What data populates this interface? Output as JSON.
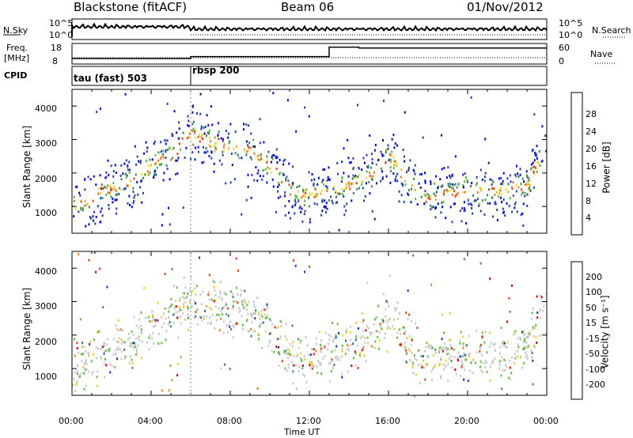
{
  "header": {
    "station": "Blackstone (fitACF)",
    "beam": "Beam 06",
    "date": "01/Nov/2012"
  },
  "param_panel": {
    "nsky_label": "N.Sky",
    "nsky_ticks": [
      "10^5",
      "10^0"
    ],
    "nsearch_label": "N.Search",
    "nsearch_ticks": [
      "10^5",
      "10^0"
    ],
    "freq_label_top": "Freq.",
    "freq_label_bottom": "[MHz]",
    "freq_ticks": [
      "18",
      "8"
    ],
    "nave_label": "Nave",
    "nave_ticks": [
      "60",
      "0"
    ],
    "cpid_label": "CPID",
    "cpid_modes": [
      {
        "name": "tau (fast) 503",
        "start_hour": 0
      },
      {
        "name": "rbsp 200",
        "start_hour": 6
      }
    ]
  },
  "axes": {
    "time_label": "Time UT",
    "time_ticks": [
      "00:00",
      "04:00",
      "08:00",
      "12:00",
      "16:00",
      "20:00",
      "00:00"
    ],
    "range_label": "Slant Range [km]",
    "range_ticks": [
      "1000",
      "2000",
      "3000",
      "4000"
    ],
    "xlim_hours": [
      0,
      24
    ],
    "ylim_km": [
      200,
      4500
    ]
  },
  "colorbars": {
    "power": {
      "label": "Power [dB]",
      "ticks": [
        "28",
        "24",
        "20",
        "16",
        "12",
        "8",
        "4"
      ],
      "colors": [
        "#0000f0",
        "#1f3fc0",
        "#2a5d9a",
        "#2f7a6a",
        "#3c8f4e",
        "#5fb33a",
        "#a6d42a",
        "#f0e020",
        "#f0b018",
        "#f07818",
        "#f04010",
        "#e00000"
      ]
    },
    "velocity": {
      "label": "Velocity [m s⁻¹]",
      "ticks": [
        "200",
        "100",
        "50",
        "15",
        "-15",
        "-50",
        "-100",
        "-200"
      ],
      "colors": [
        "#1832d8",
        "#2f70a0",
        "#3c8f5c",
        "#5fc23c",
        "#c8c8c8",
        "#f0d020",
        "#f08018",
        "#f04010",
        "#e00000"
      ]
    }
  },
  "chart_data": {
    "type": "heatmap",
    "title": "Blackstone (fitACF) Beam 06 01/Nov/2012",
    "xlabel": "Time UT",
    "ylabel": "Slant Range [km]",
    "xlim": [
      0,
      24
    ],
    "ylim": [
      200,
      4500
    ],
    "colorbar_power_label": "Power [dB]",
    "colorbar_velocity_label": "Velocity [m s⁻¹]",
    "frequency_mhz": [
      {
        "from_hour": 0,
        "to_hour": 6,
        "value": 10.5
      },
      {
        "from_hour": 6,
        "to_hour": 13,
        "value": 11.5
      },
      {
        "from_hour": 13,
        "to_hour": 14.5,
        "value": 16.5
      },
      {
        "from_hour": 14.5,
        "to_hour": 24,
        "value": 16.0
      }
    ],
    "echo_band_center_km": [
      {
        "hour": 0.0,
        "km": 1050
      },
      {
        "hour": 1.0,
        "km": 1300
      },
      {
        "hour": 2.0,
        "km": 1600
      },
      {
        "hour": 3.0,
        "km": 1800
      },
      {
        "hour": 4.0,
        "km": 2300
      },
      {
        "hour": 5.0,
        "km": 2600
      },
      {
        "hour": 6.0,
        "km": 3200
      },
      {
        "hour": 7.0,
        "km": 2900
      },
      {
        "hour": 8.0,
        "km": 2800
      },
      {
        "hour": 9.0,
        "km": 2700
      },
      {
        "hour": 10.0,
        "km": 2200
      },
      {
        "hour": 11.0,
        "km": 1500
      },
      {
        "hour": 12.0,
        "km": 1300
      },
      {
        "hour": 13.0,
        "km": 1500
      },
      {
        "hour": 14.0,
        "km": 1700
      },
      {
        "hour": 15.0,
        "km": 2000
      },
      {
        "hour": 16.0,
        "km": 2600
      },
      {
        "hour": 17.0,
        "km": 1700
      },
      {
        "hour": 18.0,
        "km": 1200
      },
      {
        "hour": 19.0,
        "km": 1450
      },
      {
        "hour": 20.0,
        "km": 1450
      },
      {
        "hour": 21.0,
        "km": 1500
      },
      {
        "hour": 22.0,
        "km": 1500
      },
      {
        "hour": 23.0,
        "km": 1650
      },
      {
        "hour": 24.0,
        "km": 3000
      }
    ]
  }
}
